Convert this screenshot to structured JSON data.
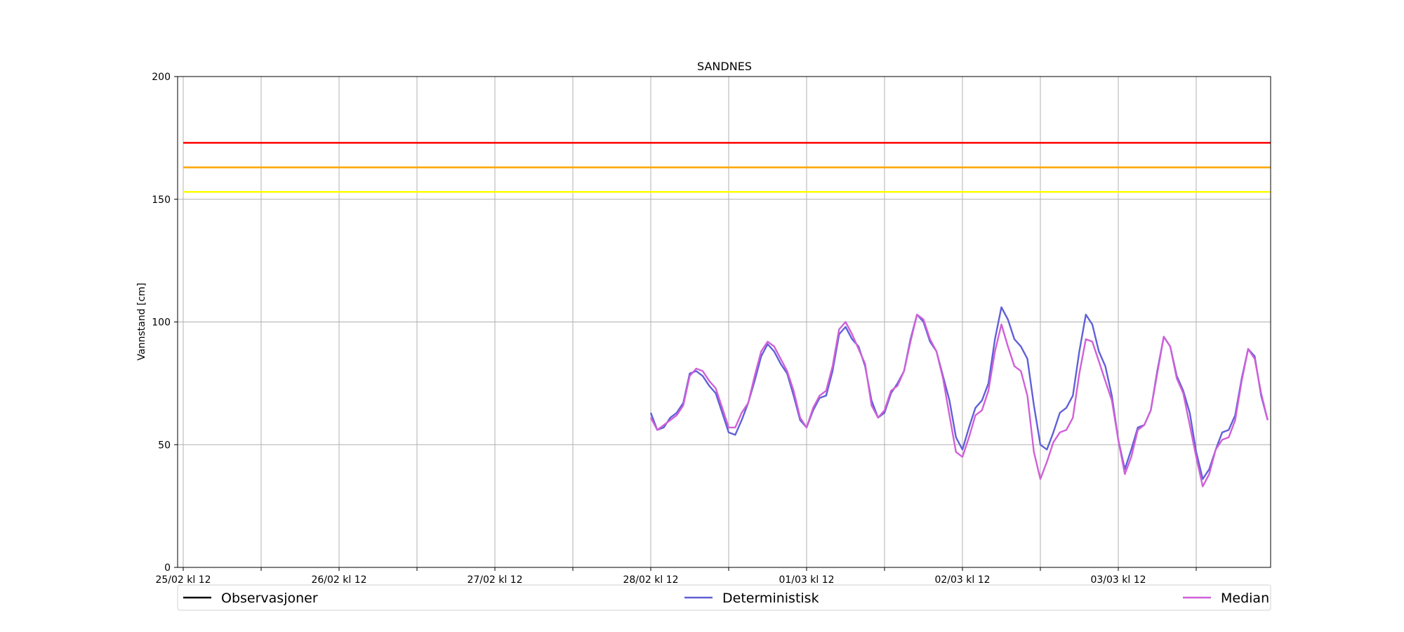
{
  "chart_data": {
    "type": "line",
    "title": "SANDNES",
    "xlabel": "",
    "ylabel": "Vannstand [cm]",
    "ylim": [
      0,
      200
    ],
    "yticks": [
      0,
      50,
      100,
      150,
      200
    ],
    "x_tick_labels": [
      "25/02 kl 12",
      "26/02 kl 12",
      "27/02 kl 12",
      "28/02 kl 12",
      "01/03 kl 12",
      "02/03 kl 12",
      "03/03 kl 12"
    ],
    "grid": true,
    "legend_position": "bottom",
    "thresholds": [
      {
        "value": 173,
        "color": "#ff0000"
      },
      {
        "value": 163,
        "color": "#ffa500"
      },
      {
        "value": 153,
        "color": "#ffff00"
      }
    ],
    "series": [
      {
        "name": "Observasjoner",
        "color": "#000000",
        "x": [],
        "values": []
      },
      {
        "name": "Deterministisk",
        "color": "#6060d8",
        "x": [
          "28/02 12:00",
          "28/02 13:00",
          "28/02 14:00",
          "28/02 15:00",
          "28/02 16:00",
          "28/02 17:00",
          "28/02 18:00",
          "28/02 19:00",
          "28/02 20:00",
          "28/02 21:00",
          "28/02 22:00",
          "28/02 23:00",
          "01/03 00:00",
          "01/03 01:00",
          "01/03 02:00",
          "01/03 03:00",
          "01/03 04:00",
          "01/03 05:00",
          "01/03 06:00",
          "01/03 07:00",
          "01/03 08:00",
          "01/03 09:00",
          "01/03 10:00",
          "01/03 11:00",
          "01/03 12:00",
          "01/03 13:00",
          "01/03 14:00",
          "01/03 15:00",
          "01/03 16:00",
          "01/03 17:00",
          "01/03 18:00",
          "01/03 19:00",
          "01/03 20:00",
          "01/03 21:00",
          "01/03 22:00",
          "01/03 23:00",
          "02/03 00:00",
          "02/03 01:00",
          "02/03 02:00",
          "02/03 03:00",
          "02/03 04:00",
          "02/03 05:00",
          "02/03 06:00",
          "02/03 07:00",
          "02/03 08:00",
          "02/03 09:00",
          "02/03 10:00",
          "02/03 11:00",
          "02/03 12:00",
          "02/03 13:00",
          "02/03 14:00",
          "02/03 15:00",
          "02/03 16:00",
          "02/03 17:00",
          "02/03 18:00",
          "02/03 19:00",
          "02/03 20:00",
          "02/03 21:00",
          "02/03 22:00",
          "02/03 23:00",
          "03/03 00:00",
          "03/03 01:00",
          "03/03 02:00",
          "03/03 03:00",
          "03/03 04:00",
          "03/03 05:00",
          "03/03 06:00",
          "03/03 07:00",
          "03/03 08:00",
          "03/03 09:00",
          "03/03 10:00",
          "03/03 11:00",
          "03/03 12:00",
          "03/03 13:00",
          "03/03 14:00",
          "03/03 15:00",
          "03/03 16:00",
          "03/03 17:00",
          "03/03 18:00",
          "03/03 19:00",
          "03/03 20:00",
          "03/03 21:00",
          "03/03 22:00",
          "03/03 23:00",
          "04/03 00:00",
          "04/03 01:00",
          "04/03 02:00",
          "04/03 03:00",
          "04/03 04:00",
          "04/03 05:00",
          "04/03 06:00",
          "04/03 07:00",
          "04/03 08:00",
          "04/03 09:00",
          "04/03 10:00",
          "04/03 11:00"
        ],
        "values": [
          63,
          56,
          57,
          61,
          63,
          67,
          79,
          80,
          78,
          74,
          71,
          63,
          55,
          54,
          60,
          67,
          76,
          86,
          91,
          88,
          83,
          79,
          70,
          60,
          57,
          64,
          69,
          70,
          80,
          95,
          98,
          93,
          90,
          82,
          68,
          61,
          63,
          71,
          75,
          80,
          93,
          103,
          100,
          92,
          88,
          78,
          68,
          53,
          48,
          57,
          65,
          68,
          75,
          93,
          106,
          101,
          93,
          90,
          85,
          66,
          50,
          48,
          55,
          63,
          65,
          70,
          88,
          103,
          99,
          88,
          82,
          70,
          52,
          40,
          48,
          57,
          58,
          64,
          80,
          94,
          90,
          78,
          72,
          63,
          47,
          36,
          40,
          48,
          55,
          56,
          62,
          77,
          89,
          86,
          70,
          60
        ]
      },
      {
        "name": "Median",
        "color": "#d060d8",
        "x": [
          "28/02 12:00",
          "28/02 13:00",
          "28/02 14:00",
          "28/02 15:00",
          "28/02 16:00",
          "28/02 17:00",
          "28/02 18:00",
          "28/02 19:00",
          "28/02 20:00",
          "28/02 21:00",
          "28/02 22:00",
          "28/02 23:00",
          "01/03 00:00",
          "01/03 01:00",
          "01/03 02:00",
          "01/03 03:00",
          "01/03 04:00",
          "01/03 05:00",
          "01/03 06:00",
          "01/03 07:00",
          "01/03 08:00",
          "01/03 09:00",
          "01/03 10:00",
          "01/03 11:00",
          "01/03 12:00",
          "01/03 13:00",
          "01/03 14:00",
          "01/03 15:00",
          "01/03 16:00",
          "01/03 17:00",
          "01/03 18:00",
          "01/03 19:00",
          "01/03 20:00",
          "01/03 21:00",
          "01/03 22:00",
          "01/03 23:00",
          "02/03 00:00",
          "02/03 01:00",
          "02/03 02:00",
          "02/03 03:00",
          "02/03 04:00",
          "02/03 05:00",
          "02/03 06:00",
          "02/03 07:00",
          "02/03 08:00",
          "02/03 09:00",
          "02/03 10:00",
          "02/03 11:00",
          "02/03 12:00",
          "02/03 13:00",
          "02/03 14:00",
          "02/03 15:00",
          "02/03 16:00",
          "02/03 17:00",
          "02/03 18:00",
          "02/03 19:00",
          "02/03 20:00",
          "02/03 21:00",
          "02/03 22:00",
          "02/03 23:00",
          "03/03 00:00",
          "03/03 01:00",
          "03/03 02:00",
          "03/03 03:00",
          "03/03 04:00",
          "03/03 05:00",
          "03/03 06:00",
          "03/03 07:00",
          "03/03 08:00",
          "03/03 09:00",
          "03/03 10:00",
          "03/03 11:00",
          "03/03 12:00",
          "03/03 13:00",
          "03/03 14:00",
          "03/03 15:00",
          "03/03 16:00",
          "03/03 17:00",
          "03/03 18:00",
          "03/03 19:00",
          "03/03 20:00",
          "03/03 21:00",
          "03/03 22:00",
          "03/03 23:00",
          "04/03 00:00",
          "04/03 01:00",
          "04/03 02:00",
          "04/03 03:00",
          "04/03 04:00",
          "04/03 05:00",
          "04/03 06:00",
          "04/03 07:00",
          "04/03 08:00",
          "04/03 09:00",
          "04/03 10:00",
          "04/03 11:00"
        ],
        "values": [
          61,
          56,
          58,
          60,
          62,
          66,
          78,
          81,
          80,
          76,
          73,
          65,
          57,
          57,
          63,
          67,
          78,
          88,
          92,
          90,
          85,
          80,
          72,
          61,
          57,
          65,
          70,
          72,
          82,
          97,
          100,
          95,
          89,
          83,
          66,
          61,
          64,
          72,
          74,
          80,
          92,
          103,
          101,
          93,
          88,
          77,
          62,
          47,
          45,
          53,
          62,
          64,
          72,
          88,
          99,
          90,
          82,
          80,
          70,
          47,
          36,
          43,
          51,
          55,
          56,
          61,
          79,
          93,
          92,
          84,
          76,
          68,
          52,
          38,
          45,
          56,
          58,
          64,
          79,
          94,
          90,
          77,
          71,
          58,
          45,
          33,
          38,
          48,
          52,
          53,
          60,
          76,
          89,
          85,
          71,
          60
        ]
      }
    ]
  }
}
